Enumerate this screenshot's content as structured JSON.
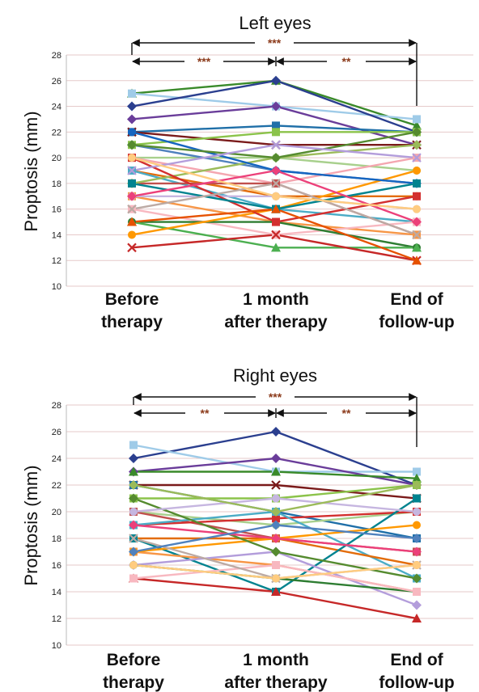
{
  "chart_data": [
    {
      "type": "line",
      "title": "Left eyes",
      "xlabel": "",
      "ylabel": "Proptosis (mm)",
      "categories": [
        [
          "Before",
          "therapy"
        ],
        [
          "1 month",
          "after therapy"
        ],
        [
          "End of",
          "follow-up"
        ]
      ],
      "ylim": [
        10,
        28
      ],
      "yticks": [
        "10",
        "12",
        "14",
        "16",
        "18",
        "20",
        "22",
        "24",
        "26",
        "28"
      ],
      "grid": true,
      "brackets": [
        {
          "from": 0,
          "to": 2,
          "label": "***"
        },
        {
          "from": 0,
          "to": 1,
          "label": "***"
        },
        {
          "from": 1,
          "to": 2,
          "label": "**"
        }
      ],
      "series": [
        {
          "values": [
            25,
            26,
            22.5
          ],
          "color": "#3a8a2a",
          "marker": "triangle"
        },
        {
          "values": [
            25,
            24,
            23
          ],
          "color": "#9fcbe8",
          "marker": "square"
        },
        {
          "values": [
            24,
            26,
            22
          ],
          "color": "#2b3f8f",
          "marker": "diamond"
        },
        {
          "values": [
            23,
            24,
            21
          ],
          "color": "#6a3d9a",
          "marker": "diamond"
        },
        {
          "values": [
            22,
            22.5,
            22
          ],
          "color": "#1f6fa8",
          "marker": "square"
        },
        {
          "values": [
            22,
            21,
            21
          ],
          "color": "#7a1a1a",
          "marker": "x"
        },
        {
          "values": [
            21,
            22,
            22
          ],
          "color": "#8bc34a",
          "marker": "square"
        },
        {
          "values": [
            20,
            20,
            19
          ],
          "color": "#a8d08d",
          "marker": "circle"
        },
        {
          "values": [
            21,
            19,
            18
          ],
          "color": "#4f81bd",
          "marker": "diamond"
        },
        {
          "values": [
            20,
            18,
            20
          ],
          "color": "#f4a6b0",
          "marker": "square"
        },
        {
          "values": [
            19,
            17,
            17
          ],
          "color": "#e36c0a",
          "marker": "circle"
        },
        {
          "values": [
            19,
            16,
            15
          ],
          "color": "#4bacc6",
          "marker": "square"
        },
        {
          "values": [
            18,
            18,
            14
          ],
          "color": "#c0504d",
          "marker": "square"
        },
        {
          "values": [
            18,
            20,
            21
          ],
          "color": "#9bbb59",
          "marker": "diamond"
        },
        {
          "values": [
            17,
            15,
            14
          ],
          "color": "#f79646",
          "marker": "square"
        },
        {
          "values": [
            17,
            17,
            16
          ],
          "color": "#c6b6e0",
          "marker": "circle"
        },
        {
          "values": [
            16,
            14,
            15
          ],
          "color": "#f8b8c0",
          "marker": "square"
        },
        {
          "values": [
            15,
            15,
            13
          ],
          "color": "#2e7d32",
          "marker": "circle"
        },
        {
          "values": [
            15,
            13,
            13
          ],
          "color": "#4caf50",
          "marker": "triangle"
        },
        {
          "values": [
            14,
            16,
            19
          ],
          "color": "#ff9800",
          "marker": "circle"
        },
        {
          "values": [
            13,
            14,
            12
          ],
          "color": "#c62828",
          "marker": "x"
        },
        {
          "values": [
            22,
            19,
            18
          ],
          "color": "#1565c0",
          "marker": "circle"
        },
        {
          "values": [
            20,
            15,
            17
          ],
          "color": "#d32f2f",
          "marker": "square"
        },
        {
          "values": [
            21,
            20,
            22
          ],
          "color": "#558b2f",
          "marker": "diamond"
        },
        {
          "values": [
            19,
            21,
            20
          ],
          "color": "#b39ddb",
          "marker": "x"
        },
        {
          "values": [
            18,
            16,
            18
          ],
          "color": "#00838f",
          "marker": "square"
        },
        {
          "values": [
            16,
            18,
            14
          ],
          "color": "#bcaaa4",
          "marker": "x"
        },
        {
          "values": [
            17,
            19,
            15
          ],
          "color": "#ec407a",
          "marker": "diamond"
        },
        {
          "values": [
            20,
            17,
            16
          ],
          "color": "#ffcc80",
          "marker": "circle"
        },
        {
          "values": [
            15,
            16,
            12
          ],
          "color": "#e65100",
          "marker": "triangle"
        }
      ]
    },
    {
      "type": "line",
      "title": "Right eyes",
      "xlabel": "",
      "ylabel": "Proptosis (mm)",
      "categories": [
        [
          "Before",
          "therapy"
        ],
        [
          "1 month",
          "after therapy"
        ],
        [
          "End of",
          "follow-up"
        ]
      ],
      "ylim": [
        10,
        28
      ],
      "yticks": [
        "10",
        "12",
        "14",
        "16",
        "18",
        "20",
        "22",
        "24",
        "26",
        "28"
      ],
      "grid": true,
      "brackets": [
        {
          "from": 0,
          "to": 2,
          "label": "***"
        },
        {
          "from": 0,
          "to": 1,
          "label": "**"
        },
        {
          "from": 1,
          "to": 2,
          "label": "**"
        }
      ],
      "series": [
        {
          "values": [
            24,
            26,
            22
          ],
          "color": "#2b3f8f",
          "marker": "diamond"
        },
        {
          "values": [
            25,
            23,
            23
          ],
          "color": "#9fcbe8",
          "marker": "square"
        },
        {
          "values": [
            23,
            24,
            22
          ],
          "color": "#6a3d9a",
          "marker": "diamond"
        },
        {
          "values": [
            23,
            23,
            22.5
          ],
          "color": "#3a8a2a",
          "marker": "triangle"
        },
        {
          "values": [
            22,
            22,
            21
          ],
          "color": "#7a1a1a",
          "marker": "x"
        },
        {
          "values": [
            22,
            20,
            18
          ],
          "color": "#1f6fa8",
          "marker": "square"
        },
        {
          "values": [
            21,
            21,
            22
          ],
          "color": "#8bc34a",
          "marker": "square"
        },
        {
          "values": [
            20,
            19,
            20
          ],
          "color": "#a8d08d",
          "marker": "circle"
        },
        {
          "values": [
            20,
            18,
            17
          ],
          "color": "#c0504d",
          "marker": "square"
        },
        {
          "values": [
            19,
            19.5,
            20
          ],
          "color": "#d32f2f",
          "marker": "square"
        },
        {
          "values": [
            19,
            20,
            15
          ],
          "color": "#4bacc6",
          "marker": "square"
        },
        {
          "values": [
            18,
            18,
            16
          ],
          "color": "#e36c0a",
          "marker": "circle"
        },
        {
          "values": [
            18,
            14,
            21
          ],
          "color": "#00838f",
          "marker": "square"
        },
        {
          "values": [
            17,
            16,
            14
          ],
          "color": "#f79646",
          "marker": "square"
        },
        {
          "values": [
            17,
            18,
            19
          ],
          "color": "#ff9800",
          "marker": "circle"
        },
        {
          "values": [
            16,
            17,
            13
          ],
          "color": "#b39ddb",
          "marker": "diamond"
        },
        {
          "values": [
            16,
            15,
            14
          ],
          "color": "#2e7d32",
          "marker": "circle"
        },
        {
          "values": [
            15,
            14,
            12
          ],
          "color": "#c62828",
          "marker": "triangle"
        },
        {
          "values": [
            15,
            16,
            14
          ],
          "color": "#f8b8c0",
          "marker": "square"
        },
        {
          "values": [
            21,
            17,
            15
          ],
          "color": "#558b2f",
          "marker": "diamond"
        },
        {
          "values": [
            19,
            18,
            17
          ],
          "color": "#ec407a",
          "marker": "diamond"
        },
        {
          "values": [
            18,
            15,
            16
          ],
          "color": "#bcaaa4",
          "marker": "x"
        },
        {
          "values": [
            20,
            21,
            20
          ],
          "color": "#c6b6e0",
          "marker": "circle"
        },
        {
          "values": [
            17,
            19,
            18
          ],
          "color": "#4f81bd",
          "marker": "diamond"
        },
        {
          "values": [
            22,
            20,
            22
          ],
          "color": "#9bbb59",
          "marker": "diamond"
        },
        {
          "values": [
            16,
            15,
            16
          ],
          "color": "#ffcc80",
          "marker": "circle"
        }
      ]
    }
  ]
}
